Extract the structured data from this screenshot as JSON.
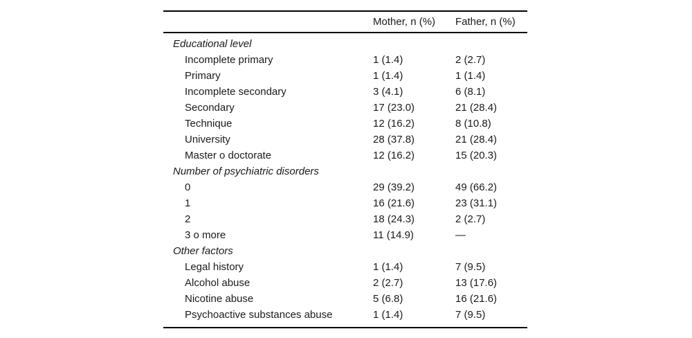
{
  "table": {
    "header": {
      "mother": "Mother, n (%)",
      "father": "Father, n (%)"
    },
    "sections": [
      {
        "title": "Educational level",
        "rows": [
          {
            "label": "Incomplete primary",
            "mother": "1 (1.4)",
            "father": "2 (2.7)"
          },
          {
            "label": "Primary",
            "mother": "1 (1.4)",
            "father": "1 (1.4)"
          },
          {
            "label": "Incomplete secondary",
            "mother": "3 (4.1)",
            "father": "6 (8.1)"
          },
          {
            "label": "Secondary",
            "mother": "17 (23.0)",
            "father": "21 (28.4)"
          },
          {
            "label": "Technique",
            "mother": "12 (16.2)",
            "father": "8 (10.8)"
          },
          {
            "label": "University",
            "mother": "28 (37.8)",
            "father": "21 (28.4)"
          },
          {
            "label": "Master o doctorate",
            "mother": "12 (16.2)",
            "father": "15 (20.3)"
          }
        ]
      },
      {
        "title": "Number of psychiatric disorders",
        "rows": [
          {
            "label": "0",
            "mother": "29 (39.2)",
            "father": "49 (66.2)"
          },
          {
            "label": "1",
            "mother": "16 (21.6)",
            "father": "23 (31.1)"
          },
          {
            "label": "2",
            "mother": "18 (24.3)",
            "father": "2 (2.7)"
          },
          {
            "label": "3 o more",
            "mother": "11 (14.9)",
            "father": "—"
          }
        ]
      },
      {
        "title": "Other factors",
        "rows": [
          {
            "label": "Legal history",
            "mother": "1 (1.4)",
            "father": "7 (9.5)"
          },
          {
            "label": "Alcohol abuse",
            "mother": "2 (2.7)",
            "father": "13 (17.6)"
          },
          {
            "label": "Nicotine abuse",
            "mother": "5 (6.8)",
            "father": "16 (21.6)"
          },
          {
            "label": "Psychoactive substances abuse",
            "mother": "1 (1.4)",
            "father": "7 (9.5)"
          }
        ]
      }
    ]
  },
  "colors": {
    "text": "#1a1a1a",
    "rule": "#000000",
    "background": "#ffffff"
  }
}
